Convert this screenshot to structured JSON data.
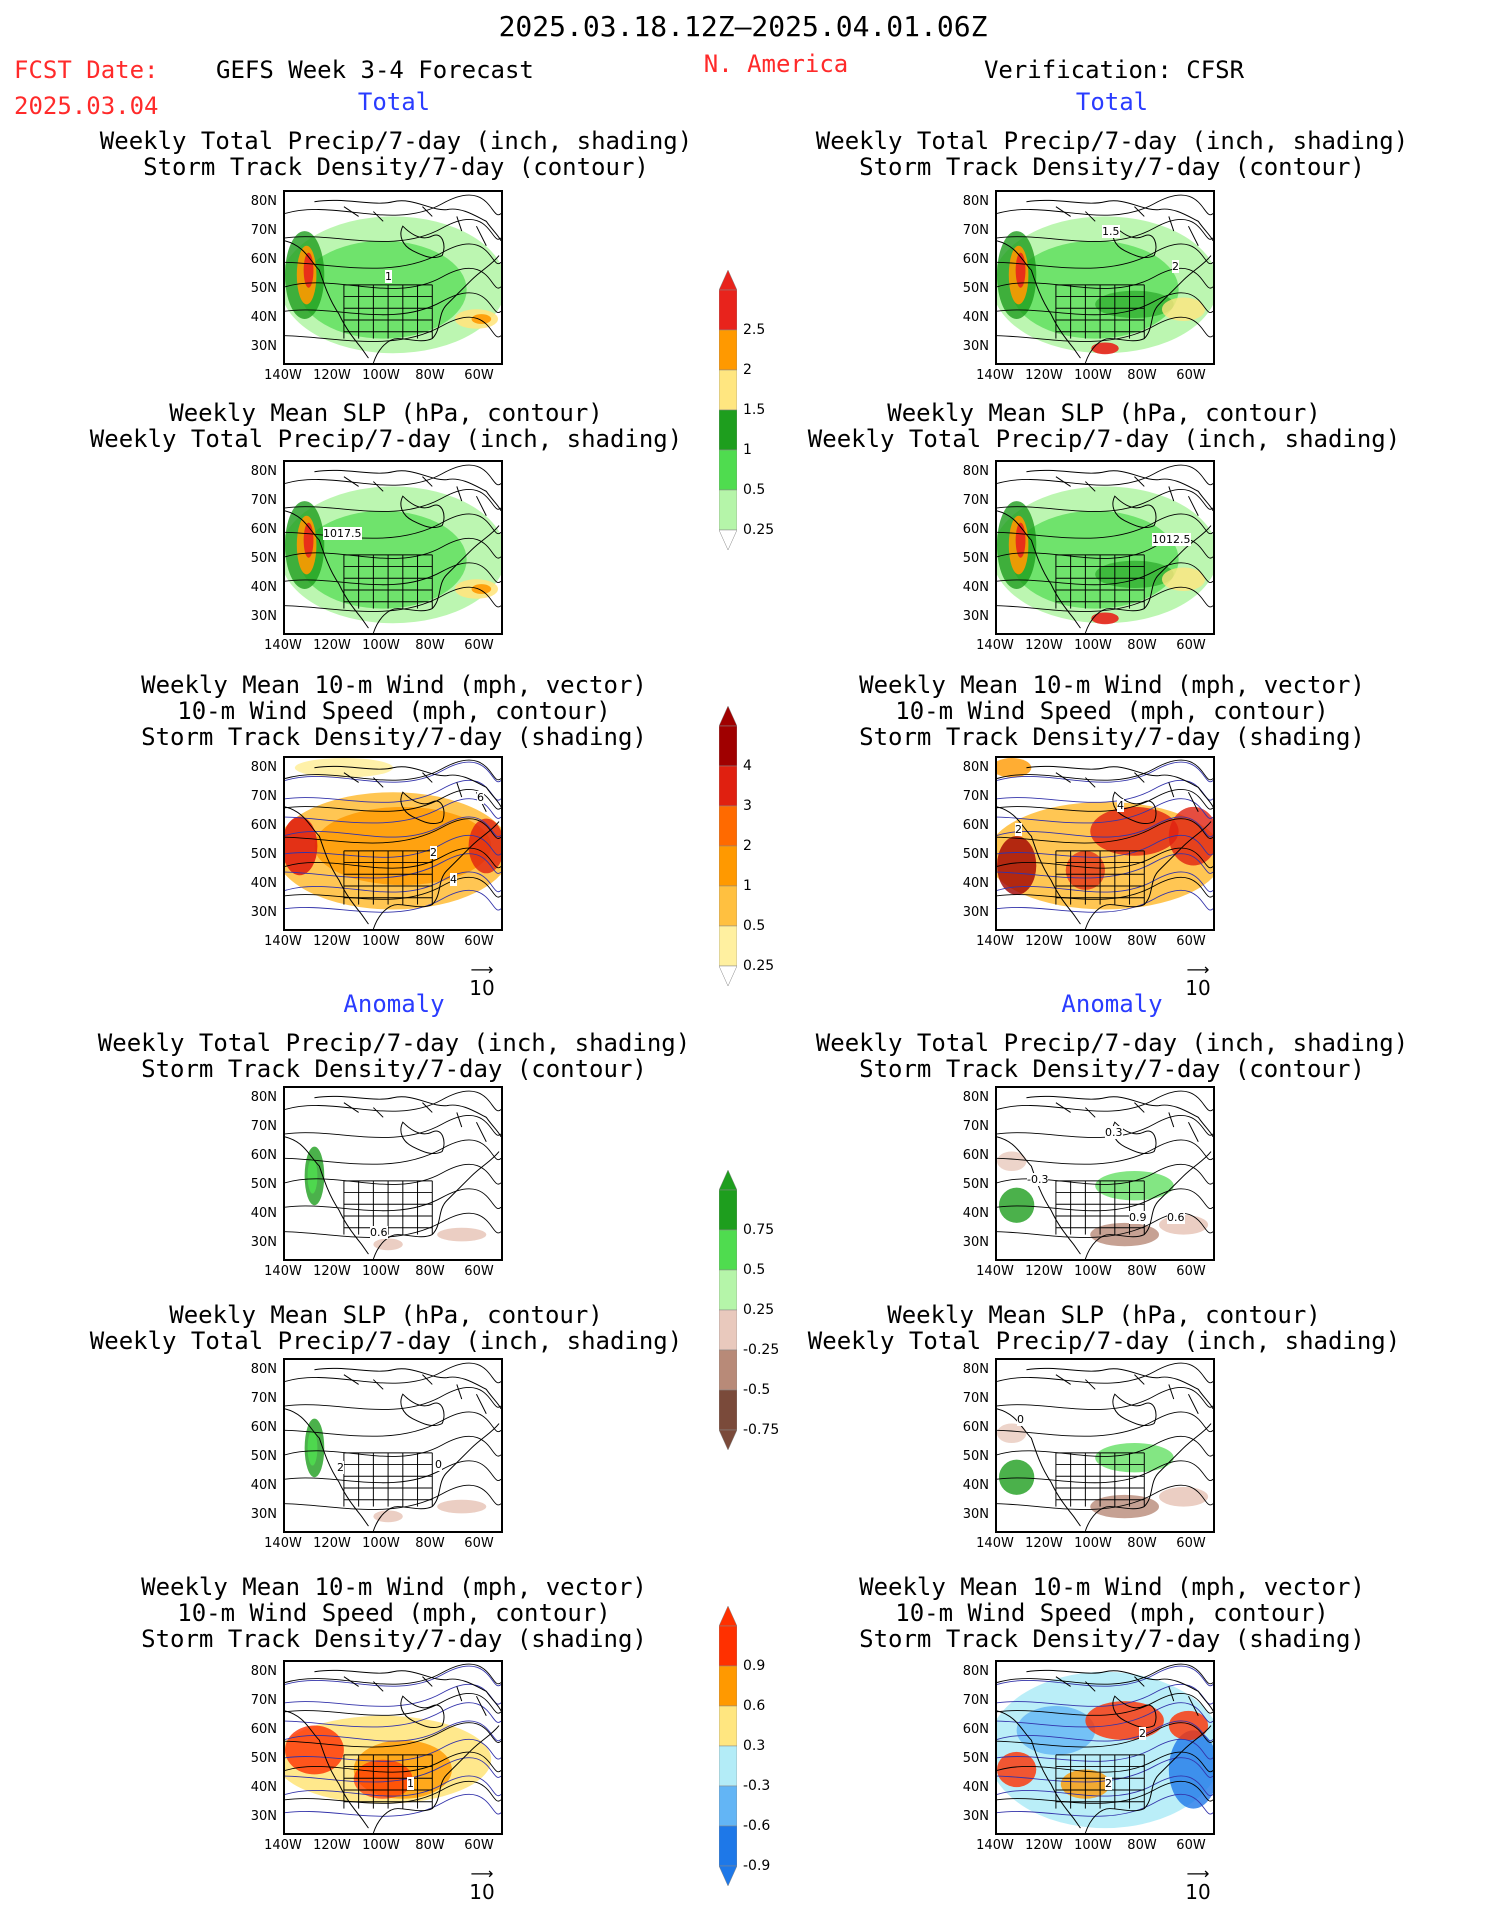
{
  "header": {
    "date_range": "2025.03.18.12Z–2025.04.01.06Z",
    "fcst_label": "FCST Date:",
    "fcst_date": "2025.03.04",
    "forecast_title": "GEFS Week 3-4 Forecast",
    "region": "N. America",
    "verification": "Verification: CFSR"
  },
  "sections": {
    "total": "Total",
    "anomaly": "Anomaly"
  },
  "titles": {
    "precip_storm": [
      "Weekly Total Precip/7-day (inch, shading)",
      "Storm Track Density/7-day (contour)"
    ],
    "slp_precip": [
      "Weekly Mean SLP (hPa, contour)",
      "Weekly Total Precip/7-day (inch, shading)"
    ],
    "wind_storm": [
      "Weekly Mean 10-m Wind (mph, vector)",
      "10-m Wind Speed (mph, contour)",
      "Storm Track Density/7-day (shading)"
    ]
  },
  "axes": {
    "lat": [
      "80N",
      "70N",
      "60N",
      "50N",
      "40N",
      "30N"
    ],
    "lon": [
      "140W",
      "120W",
      "100W",
      "80W",
      "60W"
    ]
  },
  "vector_ref": "10",
  "colorbars": {
    "precip_total": {
      "labels": [
        "2.5",
        "2",
        "1.5",
        "1",
        "0.5",
        "0.25"
      ],
      "colors": [
        "#e8231c",
        "#ff9900",
        "#ffe680",
        "#1e9e1e",
        "#4fdc4f",
        "#b5f5a9"
      ]
    },
    "storm_total": {
      "labels": [
        "4",
        "3",
        "2",
        "1",
        "0.5",
        "0.25"
      ],
      "colors": [
        "#a00000",
        "#e02010",
        "#ff6a00",
        "#ff9900",
        "#ffc040",
        "#fff0a0"
      ]
    },
    "precip_anom": {
      "labels": [
        "0.75",
        "0.5",
        "0.25",
        "-0.25",
        "-0.5",
        "-0.75"
      ],
      "colors": [
        "#1e9e1e",
        "#4fdc4f",
        "#b5f5a9",
        "#e9c9bd",
        "#b88a78",
        "#7a4a3a"
      ]
    },
    "storm_anom": {
      "labels": [
        "0.9",
        "0.6",
        "0.3",
        "-0.3",
        "-0.6",
        "-0.9"
      ],
      "colors": [
        "#ff3000",
        "#ff9900",
        "#ffe680",
        "#b3ecf7",
        "#63b5f5",
        "#1e78e8"
      ]
    }
  },
  "map_labels": {
    "fc_total_1": "1",
    "ob_total_1": "1.5",
    "ob_total_2": "2",
    "fc_slp_total": "1017.5",
    "ob_slp_total": "1012.5",
    "fc_wind_total_2": "2",
    "fc_wind_total_4": "4",
    "fc_wind_total_6": "6",
    "ob_wind_total_2": "2",
    "ob_wind_total_4": "4",
    "fc_anom_1": "0.6",
    "ob_anom_1": "-0.3",
    "ob_anom_2": "0.3",
    "ob_anom_3": "0.9",
    "ob_anom_4": "0.6",
    "fc_slp_anom": "2",
    "fc_slp_anom_0": "0",
    "ob_slp_anom": "0",
    "fc_wind_anom_1": "1",
    "ob_wind_anom_2": "2"
  }
}
